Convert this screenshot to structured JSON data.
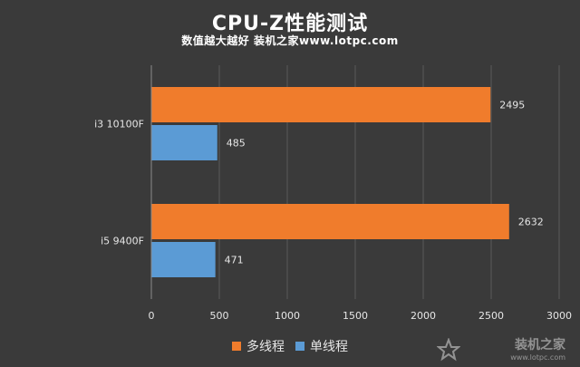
{
  "chart_data": {
    "type": "bar",
    "orientation": "horizontal",
    "title": "CPU-Z性能测试",
    "subtitle": "数值越大越好  装机之家www.lotpc.com",
    "categories": [
      "i3 10100F",
      "i5 9400F"
    ],
    "series": [
      {
        "name": "多线程",
        "values": [
          2495,
          2632
        ],
        "color": "#f07c2c"
      },
      {
        "name": "单线程",
        "values": [
          485,
          471
        ],
        "color": "#5b9bd5"
      }
    ],
    "xlim": [
      0,
      3000
    ],
    "xticks": [
      0,
      500,
      1000,
      1500,
      2000,
      2500,
      3000
    ],
    "grid": "vertical",
    "legend": "bottom",
    "data_labels": true
  },
  "watermark": {
    "text": "装机之家",
    "url": "www.lotpc.com"
  }
}
